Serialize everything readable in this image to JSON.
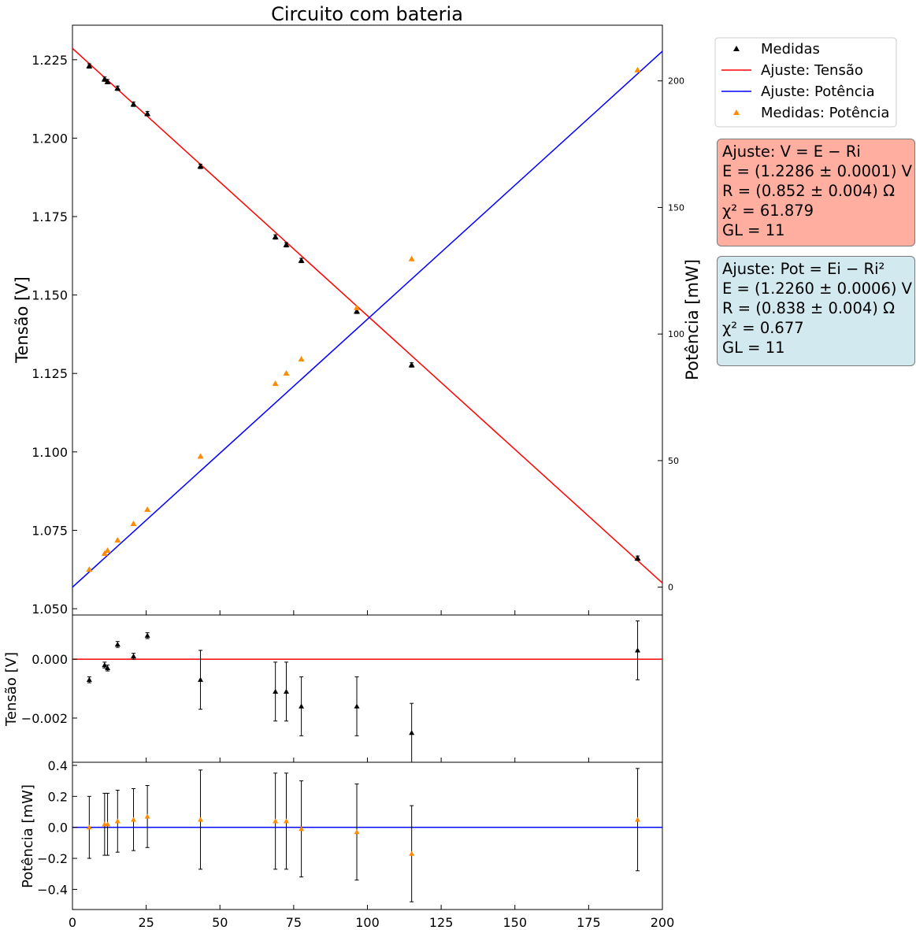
{
  "title": "Circuito com bateria",
  "colors": {
    "measured": "#000000",
    "measured_power": "#ff8c00",
    "fit_voltage": "#ff0000",
    "fit_power": "#0000ff",
    "box_voltage_bg": "#ffaea0",
    "box_power_bg": "#d2e9ef"
  },
  "legend": {
    "placement": "outside-right-top",
    "entries": [
      {
        "label": "Medidas",
        "marker": "triangle",
        "color": "#000000"
      },
      {
        "label": "Ajuste: Tensão",
        "marker": "line",
        "color": "#ff0000"
      },
      {
        "label": "Ajuste: Potência",
        "marker": "line",
        "color": "#0000ff"
      },
      {
        "label": "Medidas: Potência",
        "marker": "triangle",
        "color": "#ff8c00"
      }
    ]
  },
  "fit_boxes": [
    {
      "lines": [
        "Ajuste: V = E − Ri",
        "E = (1.2286 ± 0.0001) V",
        "R = (0.852 ± 0.004) Ω",
        "χ² = 61.879",
        "GL = 11"
      ]
    },
    {
      "lines": [
        "Ajuste: Pot = Ei − Ri²",
        "E = (1.2260 ± 0.0006) V",
        "R = (0.838 ± 0.004) Ω",
        "χ² = 0.677",
        "GL = 11"
      ]
    }
  ],
  "chart_data": [
    {
      "type": "scatter",
      "panel": "main",
      "title": "Circuito com bateria",
      "xlabel": "",
      "ylabel": "Tensão [V]",
      "y2label": "Potência [mW]",
      "xlim": [
        0,
        200
      ],
      "ylim": [
        1.048,
        1.236
      ],
      "y2lim": [
        -11,
        222
      ],
      "yticks": [
        "1.050",
        "1.075",
        "1.100",
        "1.125",
        "1.150",
        "1.175",
        "1.200",
        "1.225"
      ],
      "y2ticks": [
        "0",
        "50",
        "100",
        "150",
        "200"
      ],
      "grid": false,
      "x": [
        5.7,
        10.9,
        11.9,
        15.3,
        20.7,
        25.4,
        43.4,
        68.8,
        72.5,
        77.6,
        96.4,
        115.0,
        191.6
      ],
      "series": [
        {
          "name": "Medidas",
          "axis": "left",
          "y": [
            1.223,
            1.2188,
            1.218,
            1.2159,
            1.2108,
            1.2078,
            1.191,
            1.1685,
            1.166,
            1.161,
            1.1448,
            1.1277,
            1.0661
          ],
          "yerr": 0.001
        },
        {
          "name": "Ajuste: Tensão",
          "axis": "left",
          "kind": "line",
          "x": [
            0,
            200
          ],
          "y": [
            1.2286,
            1.0582
          ]
        },
        {
          "name": "Medidas: Potência",
          "axis": "right",
          "y": [
            7.0,
            13.3,
            14.5,
            18.6,
            25.1,
            30.7,
            51.7,
            80.4,
            84.5,
            90.1,
            110.4,
            129.7,
            204.3
          ]
        },
        {
          "name": "Ajuste: Potência",
          "axis": "right",
          "kind": "line",
          "x": [
            0,
            200
          ],
          "y": [
            0,
            211.7
          ]
        }
      ]
    },
    {
      "type": "scatter",
      "panel": "residual-voltage",
      "xlabel": "",
      "ylabel": "Tensão [V]",
      "xlim": [
        0,
        200
      ],
      "ylim": [
        -0.0035,
        0.0015
      ],
      "yticks": [
        "0.000",
        "−0.002"
      ],
      "x": [
        5.7,
        10.9,
        11.9,
        15.3,
        20.7,
        25.4,
        43.4,
        68.8,
        72.5,
        77.6,
        96.4,
        115.0,
        191.6
      ],
      "values": [
        -0.0007,
        -0.0002,
        -0.0003,
        0.0005,
        0.0001,
        0.0008,
        -0.0007,
        -0.0011,
        -0.0011,
        -0.0016,
        -0.0016,
        -0.0025,
        0.0003
      ],
      "yerr": [
        0.0001,
        0.0001,
        0.0001,
        0.0001,
        0.0001,
        0.0001,
        0.001,
        0.001,
        0.001,
        0.001,
        0.001,
        0.001,
        0.001
      ],
      "reference_line": 0
    },
    {
      "type": "scatter",
      "panel": "residual-power",
      "xlabel": "",
      "ylabel": "Potência [mW]",
      "xlim": [
        0,
        200
      ],
      "ylim": [
        -0.53,
        0.42
      ],
      "xticks": [
        "0",
        "25",
        "50",
        "75",
        "100",
        "125",
        "150",
        "175",
        "200"
      ],
      "yticks": [
        "0.4",
        "0.2",
        "0.0",
        "−0.2",
        "−0.4"
      ],
      "x": [
        5.7,
        10.9,
        11.9,
        15.3,
        20.7,
        25.4,
        43.4,
        68.8,
        72.5,
        77.6,
        96.4,
        115.0,
        191.6
      ],
      "values": [
        0.0,
        0.02,
        0.02,
        0.04,
        0.05,
        0.07,
        0.05,
        0.04,
        0.04,
        -0.01,
        -0.03,
        -0.17,
        0.05
      ],
      "yerr": [
        0.2,
        0.2,
        0.2,
        0.2,
        0.2,
        0.2,
        0.32,
        0.31,
        0.31,
        0.31,
        0.31,
        0.31,
        0.33
      ],
      "reference_line": 0
    }
  ]
}
